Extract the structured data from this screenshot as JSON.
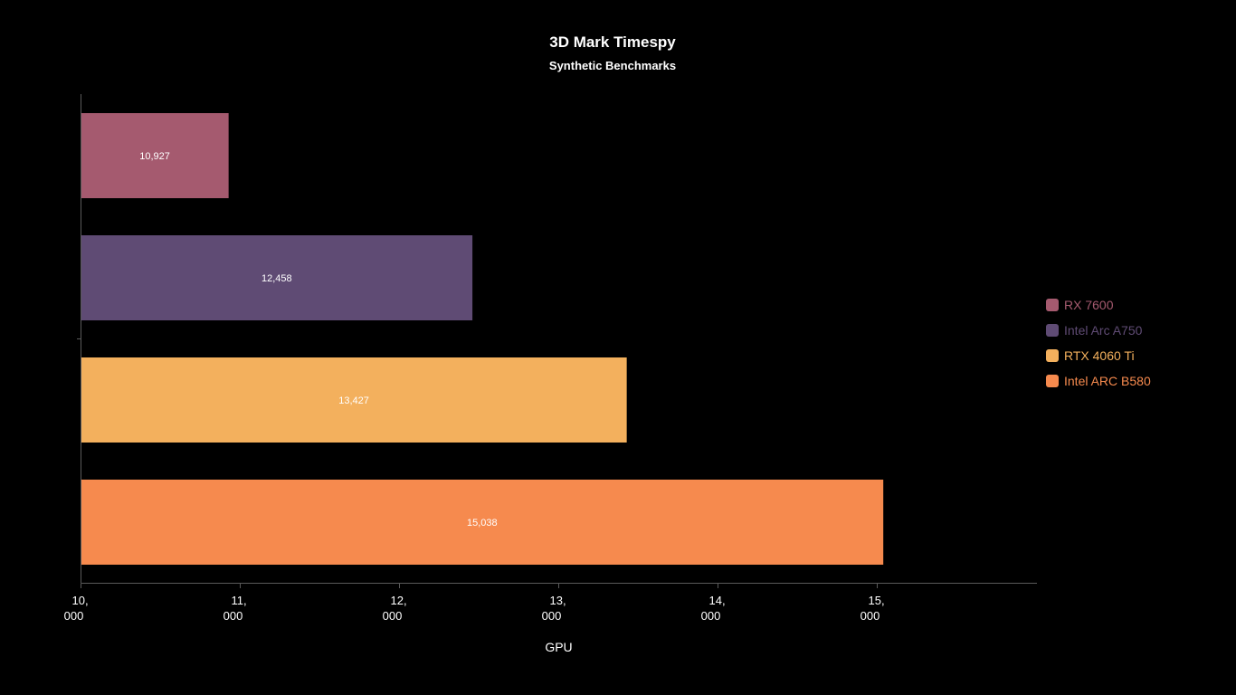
{
  "chart_data": {
    "type": "bar",
    "orientation": "horizontal",
    "title": "3D Mark Timespy",
    "subtitle": "Synthetic Benchmarks",
    "xlabel": "GPU",
    "xlim": [
      10000,
      16000
    ],
    "x_ticks": [
      {
        "value": 10000,
        "line1": "10,",
        "line2": "000"
      },
      {
        "value": 11000,
        "line1": "11,",
        "line2": "000"
      },
      {
        "value": 12000,
        "line1": "12,",
        "line2": "000"
      },
      {
        "value": 13000,
        "line1": "13,",
        "line2": "000"
      },
      {
        "value": 14000,
        "line1": "14,",
        "line2": "000"
      },
      {
        "value": 15000,
        "line1": "15,",
        "line2": "000"
      }
    ],
    "series": [
      {
        "name": "RX 7600",
        "value": 10927,
        "label": "10,927",
        "color": "#a55a6f"
      },
      {
        "name": "Intel Arc A750",
        "value": 12458,
        "label": "12,458",
        "color": "#5f4b74"
      },
      {
        "name": "RTX 4060 Ti",
        "value": 13427,
        "label": "13,427",
        "color": "#f3b05d"
      },
      {
        "name": "Intel ARC B580",
        "value": 15038,
        "label": "15,038",
        "color": "#f68a4e"
      }
    ],
    "legend_position": "right",
    "grid": false
  }
}
